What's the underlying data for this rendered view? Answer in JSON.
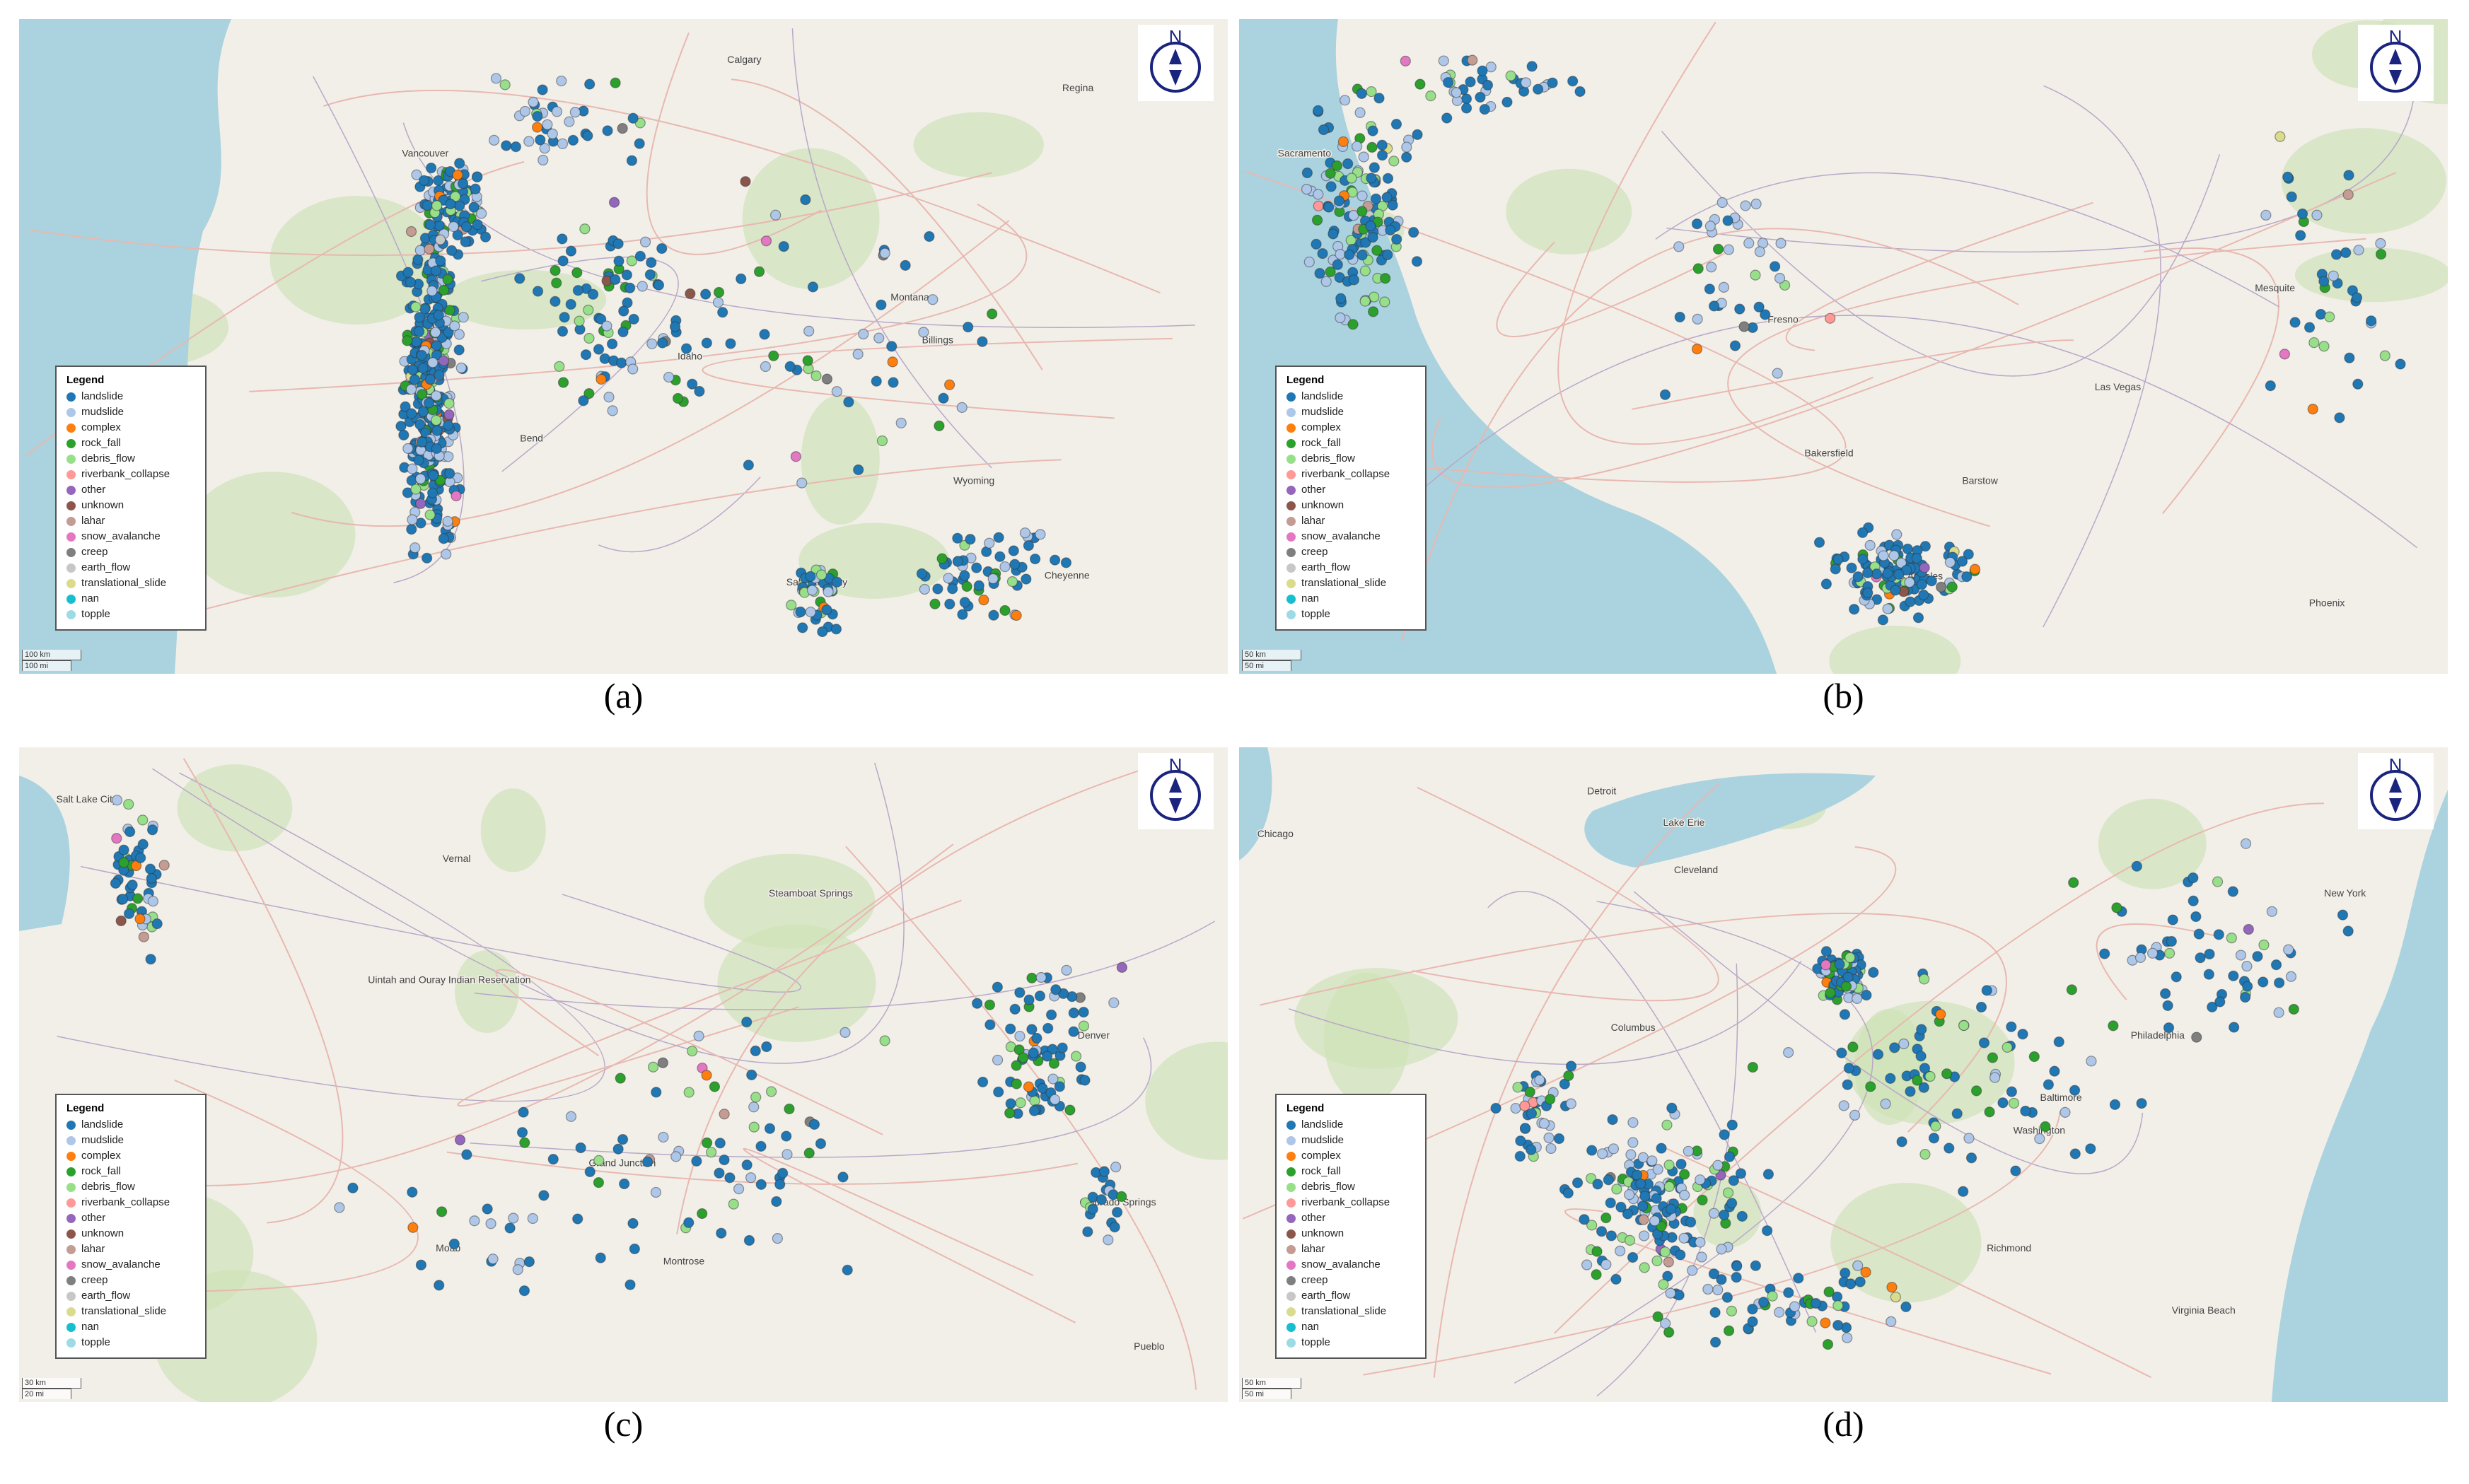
{
  "legend": {
    "title": "Legend",
    "items": [
      {
        "label": "landslide",
        "color": "#1f77b4"
      },
      {
        "label": "mudslide",
        "color": "#aec7e8"
      },
      {
        "label": "complex",
        "color": "#ff7f0e"
      },
      {
        "label": "rock_fall",
        "color": "#2ca02c"
      },
      {
        "label": "debris_flow",
        "color": "#98df8a"
      },
      {
        "label": "riverbank_collapse",
        "color": "#ff9896"
      },
      {
        "label": "other",
        "color": "#9467bd"
      },
      {
        "label": "unknown",
        "color": "#8c564b"
      },
      {
        "label": "lahar",
        "color": "#c49c94"
      },
      {
        "label": "snow_avalanche",
        "color": "#e377c2"
      },
      {
        "label": "creep",
        "color": "#7f7f7f"
      },
      {
        "label": "earth_flow",
        "color": "#c7c7c7"
      },
      {
        "label": "translational_slide",
        "color": "#dbdb8d"
      },
      {
        "label": "nan",
        "color": "#17becf"
      },
      {
        "label": "topple",
        "color": "#9edae5"
      }
    ]
  },
  "compass": "N",
  "panels": [
    {
      "caption": "(a)",
      "scale_km": "100 km",
      "scale_mi": "100 mi",
      "places": [
        "Calgary",
        "Regina",
        "Vancouver",
        "Montana",
        "Wyoming",
        "Idaho",
        "Salt Lake City",
        "Billings",
        "Cheyenne",
        "Bend"
      ]
    },
    {
      "caption": "(b)",
      "scale_km": "50 km",
      "scale_mi": "50 mi",
      "places": [
        "Sacramento",
        "Fresno",
        "Las Vegas",
        "Los Angeles",
        "Bakersfield",
        "Phoenix",
        "Mesquite",
        "Barstow"
      ]
    },
    {
      "caption": "(c)",
      "scale_km": "30 km",
      "scale_mi": "20 mi",
      "places": [
        "Salt Lake City",
        "Vernal",
        "Denver",
        "Grand Junction",
        "Steamboat Springs",
        "Uintah and Ouray Indian Reservation",
        "Colorado Springs",
        "Montrose",
        "Pueblo",
        "Moab"
      ]
    },
    {
      "caption": "(d)",
      "scale_km": "50 km",
      "scale_mi": "50 mi",
      "places": [
        "Chicago",
        "Detroit",
        "Cleveland",
        "Columbus",
        "Philadelphia",
        "Washington",
        "New York",
        "Richmond",
        "Baltimore",
        "Virginia Beach",
        "Lake Erie"
      ]
    }
  ]
}
